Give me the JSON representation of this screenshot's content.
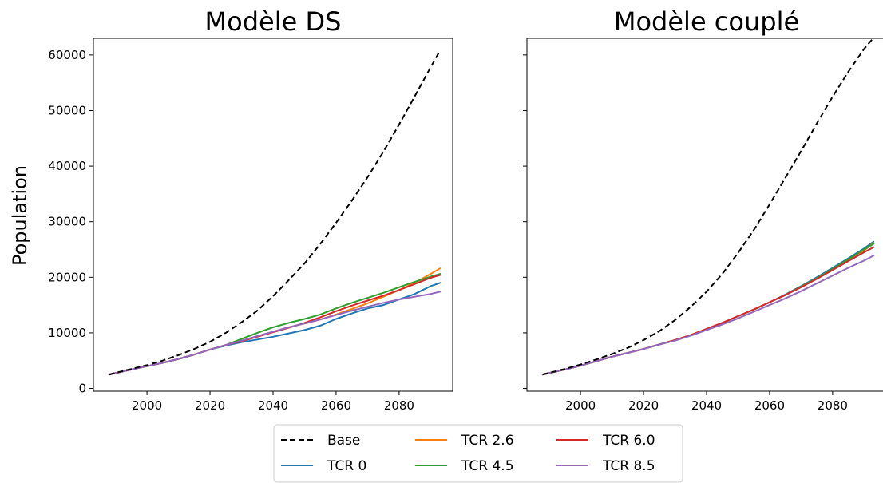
{
  "colors": {
    "Base": "#000000",
    "TCR 0": "#1f77b4",
    "TCR 2.6": "#ff7f0e",
    "TCR 4.5": "#2ca02c",
    "TCR 6.0": "#d62728",
    "TCR 8.5": "#9467bd"
  },
  "legend": {
    "placement": "bottom-center",
    "entries": [
      "Base",
      "TCR 0",
      "TCR 2.6",
      "TCR 4.5",
      "TCR 6.0",
      "TCR 8.5"
    ]
  },
  "chart_data": [
    {
      "type": "line",
      "title": "Modèle DS",
      "xlabel": "",
      "ylabel": "Population",
      "xlim": [
        1983,
        2097
      ],
      "ylim": [
        -500,
        63000
      ],
      "xticks": [
        2000,
        2020,
        2040,
        2060,
        2080
      ],
      "yticks": [
        0,
        10000,
        20000,
        30000,
        40000,
        50000,
        60000
      ],
      "grid": false,
      "x": [
        1988,
        1995,
        2000,
        2005,
        2010,
        2015,
        2020,
        2025,
        2030,
        2035,
        2040,
        2045,
        2050,
        2055,
        2060,
        2065,
        2070,
        2075,
        2080,
        2085,
        2090,
        2093
      ],
      "series": [
        {
          "name": "Base",
          "style": "dashed",
          "values": [
            2500,
            3500,
            4200,
            5000,
            6000,
            7100,
            8400,
            10000,
            11900,
            14000,
            16600,
            19500,
            22500,
            26000,
            29800,
            33800,
            38000,
            42600,
            47500,
            52600,
            57800,
            60800
          ]
        },
        {
          "name": "TCR 0",
          "values": [
            2500,
            3400,
            4000,
            4600,
            5300,
            6100,
            7000,
            7700,
            8300,
            8800,
            9300,
            9900,
            10500,
            11300,
            12500,
            13500,
            14400,
            15000,
            16000,
            17000,
            18400,
            19000
          ]
        },
        {
          "name": "TCR 2.6",
          "values": [
            2500,
            3400,
            4000,
            4600,
            5300,
            6100,
            7000,
            7800,
            8600,
            9400,
            10200,
            11000,
            11700,
            12400,
            13300,
            14300,
            15300,
            16500,
            17700,
            19000,
            20600,
            21600
          ]
        },
        {
          "name": "TCR 4.5",
          "values": [
            2500,
            3400,
            4000,
            4600,
            5300,
            6100,
            7000,
            7800,
            8900,
            10000,
            11000,
            11800,
            12500,
            13300,
            14400,
            15400,
            16300,
            17200,
            18200,
            19200,
            20100,
            20600
          ]
        },
        {
          "name": "TCR 6.0",
          "values": [
            2500,
            3400,
            4000,
            4600,
            5300,
            6100,
            7000,
            7800,
            8500,
            9300,
            10100,
            10900,
            11800,
            12800,
            13900,
            14900,
            15800,
            16700,
            17700,
            18800,
            19900,
            20400
          ]
        },
        {
          "name": "TCR 8.5",
          "values": [
            2500,
            3400,
            4000,
            4600,
            5300,
            6100,
            7000,
            7800,
            8600,
            9400,
            10200,
            11000,
            11700,
            12400,
            13200,
            14000,
            14700,
            15400,
            16000,
            16500,
            17000,
            17400
          ]
        }
      ]
    },
    {
      "type": "line",
      "title": "Modèle couplé",
      "xlabel": "",
      "ylabel": "",
      "xlim": [
        1983,
        2097
      ],
      "ylim": [
        -500,
        63000
      ],
      "xticks": [
        2000,
        2020,
        2040,
        2060,
        2080
      ],
      "yticks": [
        0,
        10000,
        20000,
        30000,
        40000,
        50000,
        60000
      ],
      "grid": false,
      "x": [
        1988,
        1995,
        2000,
        2005,
        2010,
        2015,
        2020,
        2025,
        2030,
        2035,
        2040,
        2045,
        2050,
        2055,
        2060,
        2065,
        2070,
        2075,
        2080,
        2085,
        2090,
        2093
      ],
      "series": [
        {
          "name": "Base",
          "style": "dashed",
          "values": [
            2500,
            3500,
            4300,
            5200,
            6200,
            7300,
            8700,
            10300,
            12300,
            14700,
            17400,
            20600,
            24400,
            28500,
            33100,
            37900,
            42700,
            47700,
            52500,
            57000,
            61100,
            63100
          ]
        },
        {
          "name": "TCR 0",
          "values": [
            2500,
            3400,
            4100,
            4900,
            5700,
            6400,
            7100,
            7900,
            8700,
            9600,
            10700,
            11800,
            13000,
            14200,
            15500,
            16900,
            18400,
            20000,
            21700,
            23400,
            25200,
            26400
          ]
        },
        {
          "name": "TCR 2.6",
          "values": [
            2500,
            3400,
            4100,
            4900,
            5700,
            6400,
            7100,
            7900,
            8700,
            9600,
            10700,
            11800,
            13000,
            14200,
            15500,
            16800,
            18300,
            19800,
            21400,
            23000,
            24800,
            26200
          ]
        },
        {
          "name": "TCR 4.5",
          "values": [
            2500,
            3400,
            4100,
            4900,
            5700,
            6400,
            7100,
            7900,
            8700,
            9600,
            10700,
            11800,
            13000,
            14200,
            15500,
            16800,
            18300,
            19800,
            21500,
            23200,
            25000,
            26000
          ]
        },
        {
          "name": "TCR 6.0",
          "values": [
            2500,
            3400,
            4100,
            4900,
            5700,
            6400,
            7100,
            7900,
            8700,
            9600,
            10700,
            11800,
            13000,
            14200,
            15500,
            16800,
            18200,
            19700,
            21300,
            22900,
            24500,
            25400
          ]
        },
        {
          "name": "TCR 8.5",
          "values": [
            2500,
            3400,
            4100,
            4900,
            5700,
            6400,
            7100,
            7900,
            8600,
            9500,
            10500,
            11500,
            12600,
            13800,
            15000,
            16200,
            17500,
            18900,
            20300,
            21700,
            23000,
            23900
          ]
        }
      ]
    }
  ]
}
